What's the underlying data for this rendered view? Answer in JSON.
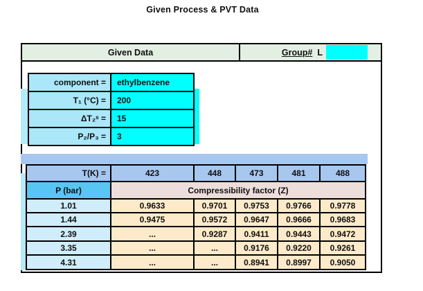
{
  "title": "Given Process & PVT Data",
  "header": {
    "given_data_label": "Given Data",
    "group_label": "Group#",
    "group_value": "L",
    "group_input_value": ""
  },
  "given_data": {
    "rows": [
      {
        "label": "component =",
        "value": "ethylbenzene"
      },
      {
        "label": "T₁ (°C) =",
        "value": "200"
      },
      {
        "label": "ΔT₂ˢ =",
        "value": "15"
      },
      {
        "label": "P₂/P₃ =",
        "value": "3"
      }
    ]
  },
  "pvt": {
    "t_label": "T(K) =",
    "temperatures": [
      "423",
      "448",
      "473",
      "481",
      "488"
    ],
    "p_label": "P (bar)",
    "z_header": "Compressibility factor (Z)",
    "rows": [
      {
        "p": "1.01",
        "z": [
          "0.9633",
          "0.9701",
          "0.9753",
          "0.9766",
          "0.9778"
        ]
      },
      {
        "p": "1.44",
        "z": [
          "0.9475",
          "0.9572",
          "0.9647",
          "0.9666",
          "0.9683"
        ]
      },
      {
        "p": "2.39",
        "z": [
          "...",
          "0.9287",
          "0.9411",
          "0.9443",
          "0.9472"
        ]
      },
      {
        "p": "3.35",
        "z": [
          "...",
          "...",
          "0.9176",
          "0.9220",
          "0.9261"
        ]
      },
      {
        "p": "4.31",
        "z": [
          "...",
          "...",
          "0.8941",
          "0.8997",
          "0.9050"
        ]
      }
    ]
  },
  "colors": {
    "input_cyan": "#00ffff",
    "label_light_cyan": "#a9e7f9",
    "header_green": "#e3efe2",
    "band_blue": "#a7c7ef",
    "p_header_blue": "#58c6f2",
    "p_cell_blue": "#d0edfb",
    "z_header_rose": "#eddedb",
    "z_cell_peach": "#fdeaca"
  }
}
